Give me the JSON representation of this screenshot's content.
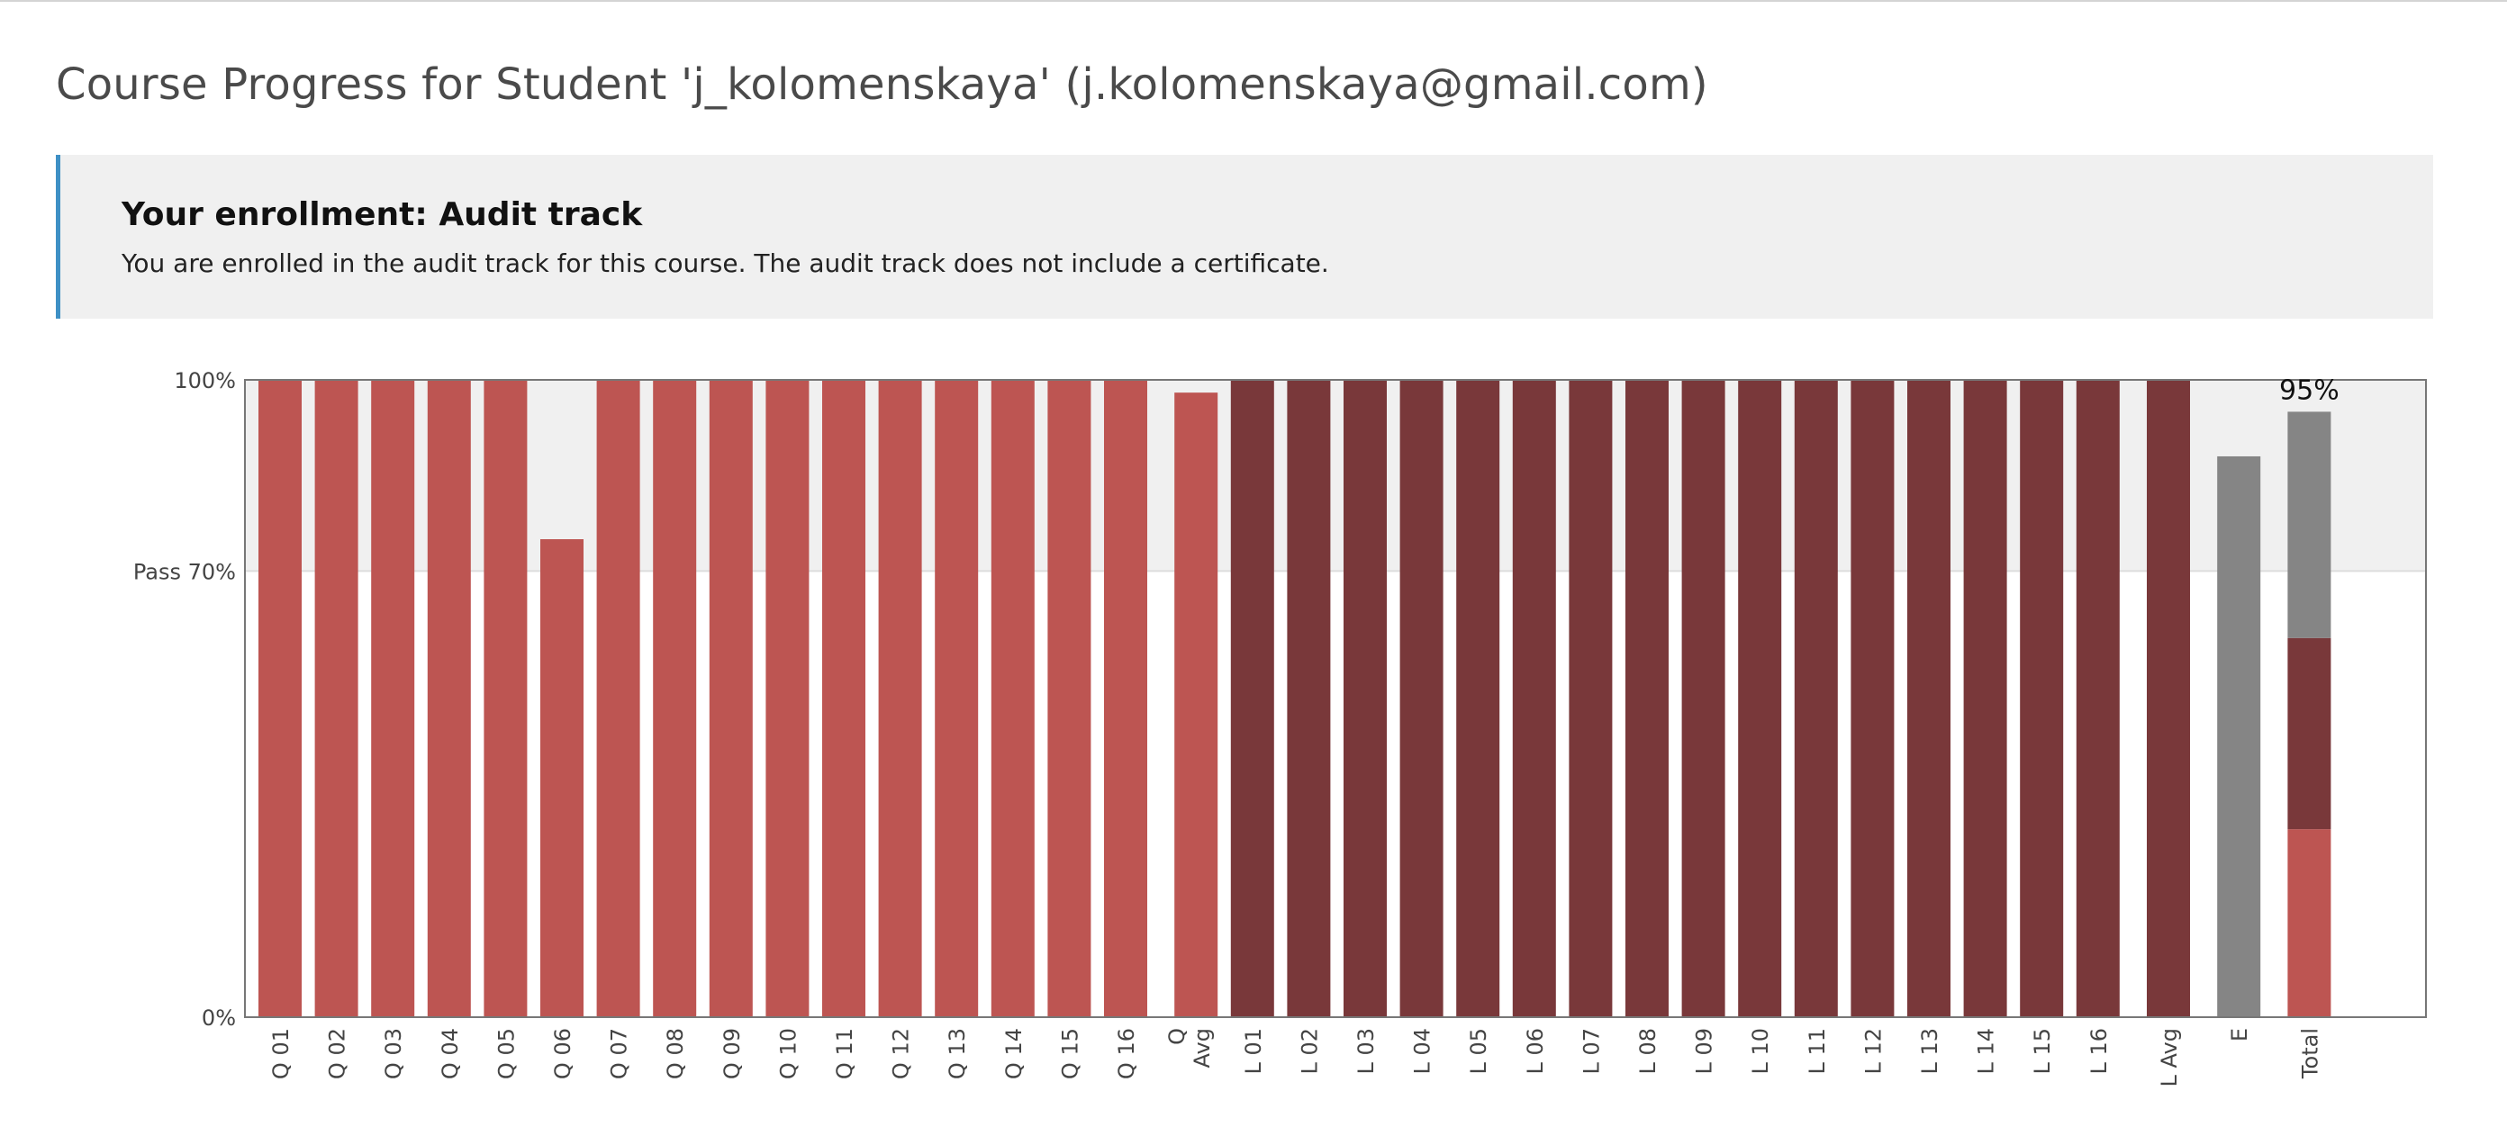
{
  "page": {
    "title": "Course Progress for Student 'j_kolomenskaya' (j.kolomenskaya@gmail.com)"
  },
  "enrollment": {
    "title": "Your enrollment: Audit track",
    "message": "You are enrolled in the audit track for this course. The audit track does not include a certificate."
  },
  "colors": {
    "quiz": "#bd5552",
    "lab": "#79383a",
    "exam": "#858585",
    "pass_band": "#f0f0f0",
    "axis": "#777777"
  },
  "chart_data": {
    "type": "bar",
    "title": "",
    "xlabel": "",
    "ylabel": "",
    "ylim": [
      0,
      100
    ],
    "y_ticks": [
      {
        "value": 100,
        "label": "100%"
      },
      {
        "value": 70,
        "label": "Pass 70%"
      },
      {
        "value": 0,
        "label": "0%"
      }
    ],
    "pass_threshold": 70,
    "total_label": "95%",
    "bars": [
      {
        "label": "Q 01",
        "value": 100,
        "group": "quiz"
      },
      {
        "label": "Q 02",
        "value": 100,
        "group": "quiz"
      },
      {
        "label": "Q 03",
        "value": 100,
        "group": "quiz"
      },
      {
        "label": "Q 04",
        "value": 100,
        "group": "quiz"
      },
      {
        "label": "Q 05",
        "value": 100,
        "group": "quiz"
      },
      {
        "label": "Q 06",
        "value": 75,
        "group": "quiz"
      },
      {
        "label": "Q 07",
        "value": 100,
        "group": "quiz"
      },
      {
        "label": "Q 08",
        "value": 100,
        "group": "quiz"
      },
      {
        "label": "Q 09",
        "value": 100,
        "group": "quiz"
      },
      {
        "label": "Q 10",
        "value": 100,
        "group": "quiz"
      },
      {
        "label": "Q 11",
        "value": 100,
        "group": "quiz"
      },
      {
        "label": "Q 12",
        "value": 100,
        "group": "quiz"
      },
      {
        "label": "Q 13",
        "value": 100,
        "group": "quiz"
      },
      {
        "label": "Q 14",
        "value": 100,
        "group": "quiz"
      },
      {
        "label": "Q 15",
        "value": 100,
        "group": "quiz"
      },
      {
        "label": "Q 16",
        "value": 100,
        "group": "quiz"
      },
      {
        "label": "Q Avg",
        "value": 98,
        "group": "quiz",
        "gap_before": true
      },
      {
        "label": "L 01",
        "value": 100,
        "group": "lab"
      },
      {
        "label": "L 02",
        "value": 100,
        "group": "lab"
      },
      {
        "label": "L 03",
        "value": 100,
        "group": "lab"
      },
      {
        "label": "L 04",
        "value": 100,
        "group": "lab"
      },
      {
        "label": "L 05",
        "value": 100,
        "group": "lab"
      },
      {
        "label": "L 06",
        "value": 100,
        "group": "lab"
      },
      {
        "label": "L 07",
        "value": 100,
        "group": "lab"
      },
      {
        "label": "L 08",
        "value": 100,
        "group": "lab"
      },
      {
        "label": "L 09",
        "value": 100,
        "group": "lab"
      },
      {
        "label": "L 10",
        "value": 100,
        "group": "lab"
      },
      {
        "label": "L 11",
        "value": 100,
        "group": "lab"
      },
      {
        "label": "L 12",
        "value": 100,
        "group": "lab"
      },
      {
        "label": "L 13",
        "value": 100,
        "group": "lab"
      },
      {
        "label": "L 14",
        "value": 100,
        "group": "lab"
      },
      {
        "label": "L 15",
        "value": 100,
        "group": "lab"
      },
      {
        "label": "L 16",
        "value": 100,
        "group": "lab"
      },
      {
        "label": "L Avg",
        "value": 100,
        "group": "lab",
        "gap_before": true
      },
      {
        "label": "E",
        "value": 88,
        "group": "exam",
        "gap_before": true
      },
      {
        "label": "Total",
        "value": 95,
        "group": "total",
        "gap_before": true,
        "segments": [
          {
            "group": "quiz",
            "value": 29.5
          },
          {
            "group": "lab",
            "value": 30
          },
          {
            "group": "exam",
            "value": 35.5
          }
        ]
      }
    ]
  }
}
